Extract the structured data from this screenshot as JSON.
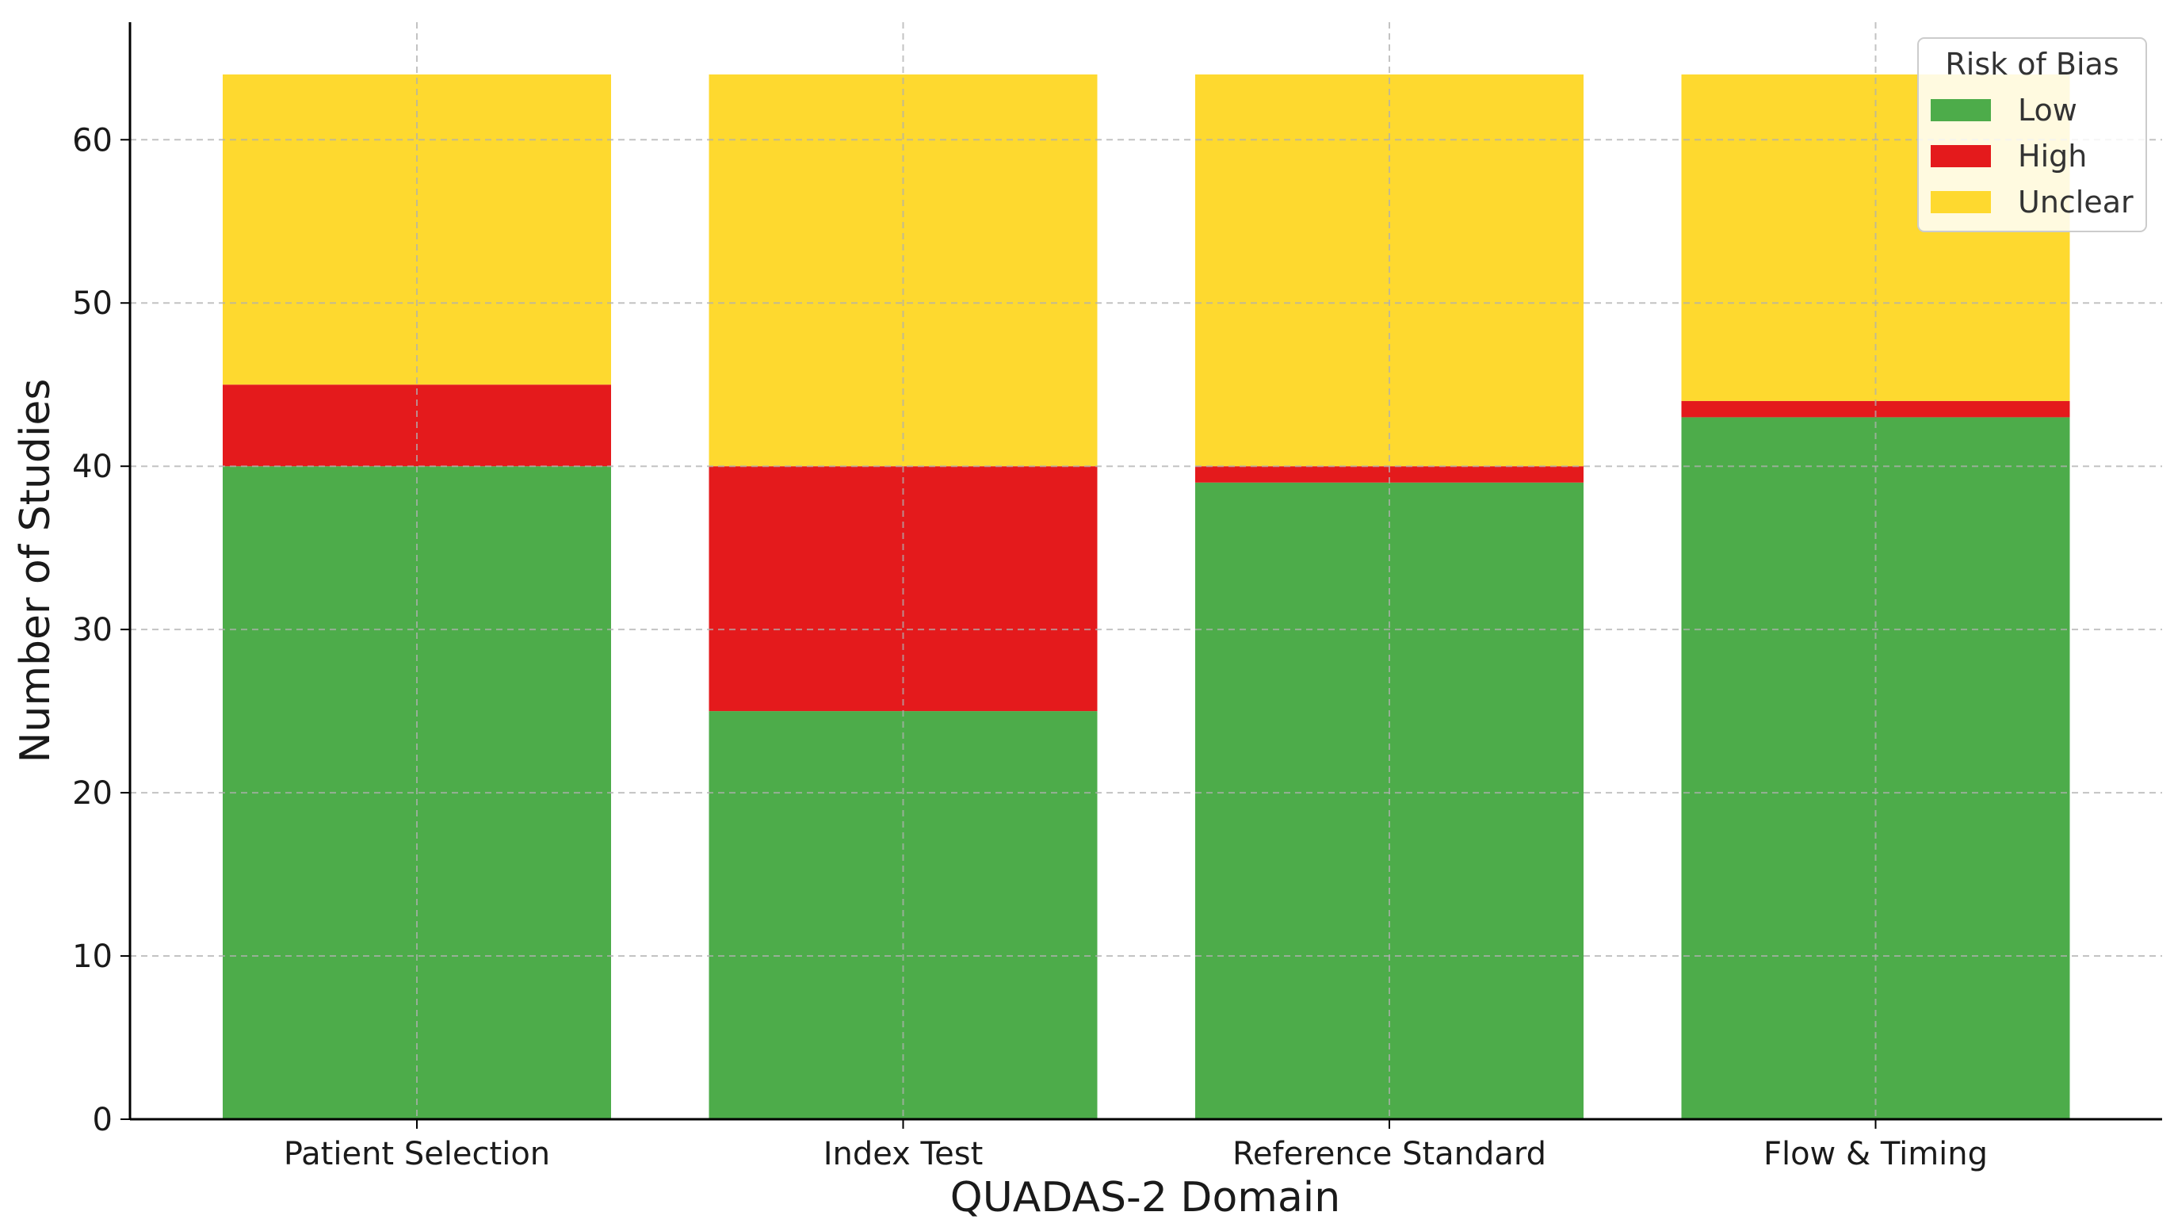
{
  "chart_data": {
    "type": "bar",
    "stacked": true,
    "title": "",
    "xlabel": "QUADAS-2 Domain",
    "ylabel": "Number of Studies",
    "categories": [
      "Patient Selection",
      "Index Test",
      "Reference Standard",
      "Flow & Timing"
    ],
    "series": [
      {
        "name": "Low",
        "color": "#4dac4a",
        "values": [
          40,
          25,
          39,
          43
        ]
      },
      {
        "name": "High",
        "color": "#e41a1c",
        "values": [
          5,
          15,
          1,
          1
        ]
      },
      {
        "name": "Unclear",
        "color": "#fed92f",
        "values": [
          19,
          24,
          24,
          20
        ]
      }
    ],
    "ylim": [
      0,
      67.2
    ],
    "yticks": [
      0,
      10,
      20,
      30,
      40,
      50,
      60
    ],
    "grid": true,
    "legend": {
      "title": "Risk of Bias",
      "position": "top-right"
    }
  }
}
